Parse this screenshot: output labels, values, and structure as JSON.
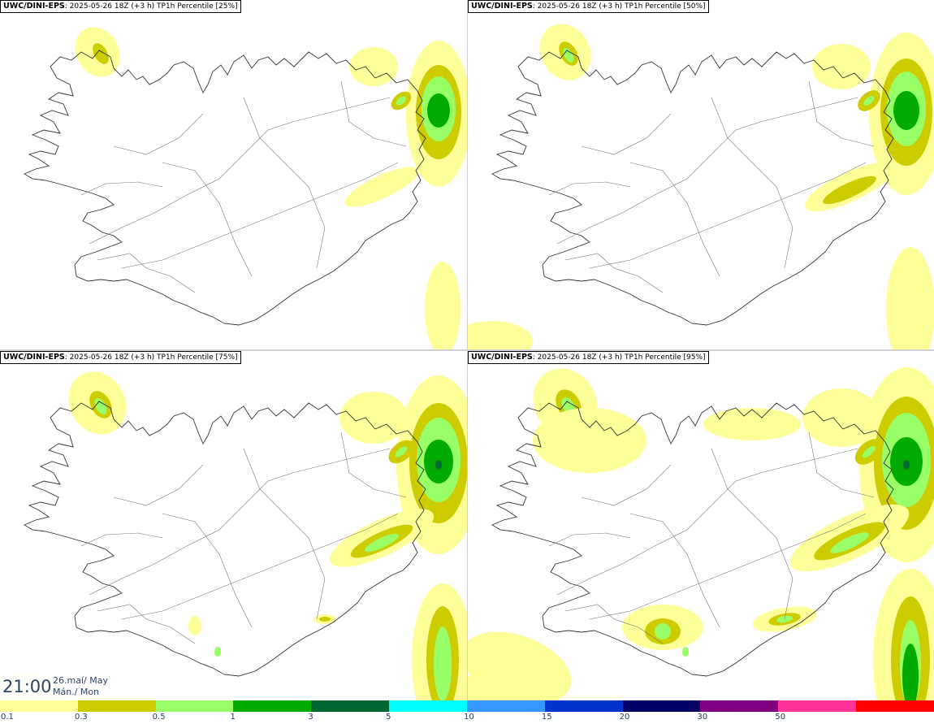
{
  "panels": [
    {
      "model": "UWC/DINI-EPS",
      "run": ": 2025-05-26 18Z (+3 h)",
      "field": " TP1h Percentile [25%]",
      "intensity": 1
    },
    {
      "model": "UWC/DINI-EPS",
      "run": ": 2025-05-26 18Z (+3 h)",
      "field": " TP1h Percentile [50%]",
      "intensity": 2
    },
    {
      "model": "UWC/DINI-EPS",
      "run": ": 2025-05-26 18Z (+3 h)",
      "field": " TP1h Percentile [75%]",
      "intensity": 3
    },
    {
      "model": "UWC/DINI-EPS",
      "run": ": 2025-05-26 18Z (+3 h)",
      "field": " TP1h Percentile [95%]",
      "intensity": 4
    }
  ],
  "timestamp": {
    "time": "21:00",
    "date_line1": "26.maí/ May",
    "date_line2": "Mán./ Mon"
  },
  "legend": {
    "colors": [
      "#ffff99",
      "#cccc00",
      "#99ff66",
      "#00aa00",
      "#006633",
      "#00ffff",
      "#3399ff",
      "#0033cc",
      "#000066",
      "#800080",
      "#ff3399",
      "#ff0000"
    ],
    "ticks": [
      "0.1",
      "0.3",
      "0.5",
      "1",
      "3",
      "5",
      "10",
      "15",
      "20",
      "30",
      "50"
    ]
  }
}
